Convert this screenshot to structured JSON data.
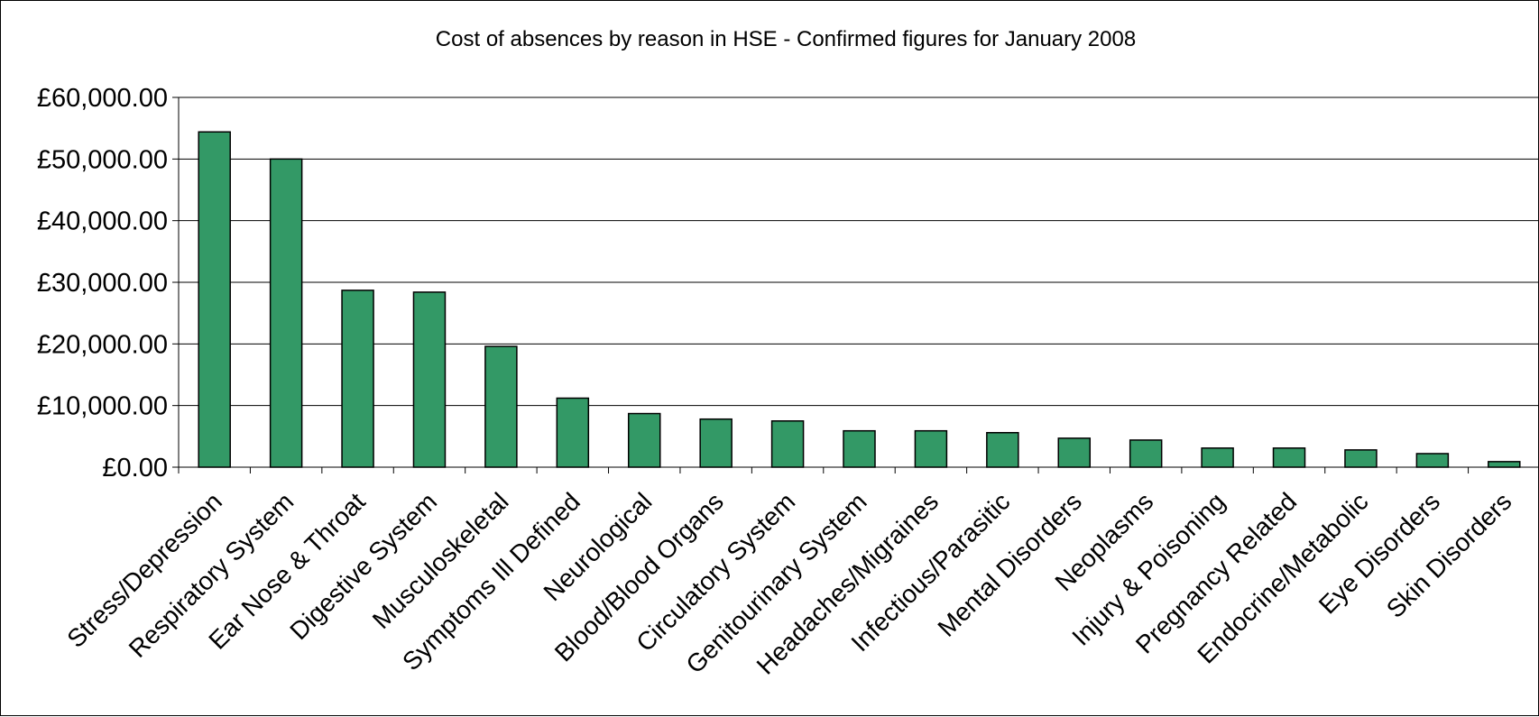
{
  "chart_data": {
    "type": "bar",
    "title": "Cost of absences by reason in HSE - Confirmed figures for January 2008",
    "xlabel": "",
    "ylabel": "",
    "ylim": [
      0,
      60000
    ],
    "yticks": [
      0,
      10000,
      20000,
      30000,
      40000,
      50000,
      60000
    ],
    "ytick_labels": [
      "£0.00",
      "£10,000.00",
      "£20,000.00",
      "£30,000.00",
      "£40,000.00",
      "£50,000.00",
      "£60,000.00"
    ],
    "grid": true,
    "legend": "none",
    "bar_color": "#339966",
    "categories": [
      "Stress/Depression",
      "Respiratory System",
      "Ear Nose & Throat",
      "Digestive System",
      "Musculoskeletal",
      "Symptoms Ill Defined",
      "Neurological",
      "Blood/Blood Organs",
      "Circulatory System",
      "Genitourinary System",
      "Headaches/Migraines",
      "Infectious/Parasitic",
      "Mental Disorders",
      "Neoplasms",
      "Injury & Poisoning",
      "Pregnancy Related",
      "Endocrine/Metabolic",
      "Eye Disorders",
      "Skin Disorders"
    ],
    "values": [
      54400,
      50000,
      28700,
      28400,
      19600,
      11200,
      8700,
      7800,
      7500,
      5900,
      5900,
      5600,
      4700,
      4400,
      3100,
      3100,
      2800,
      2200,
      900
    ]
  }
}
